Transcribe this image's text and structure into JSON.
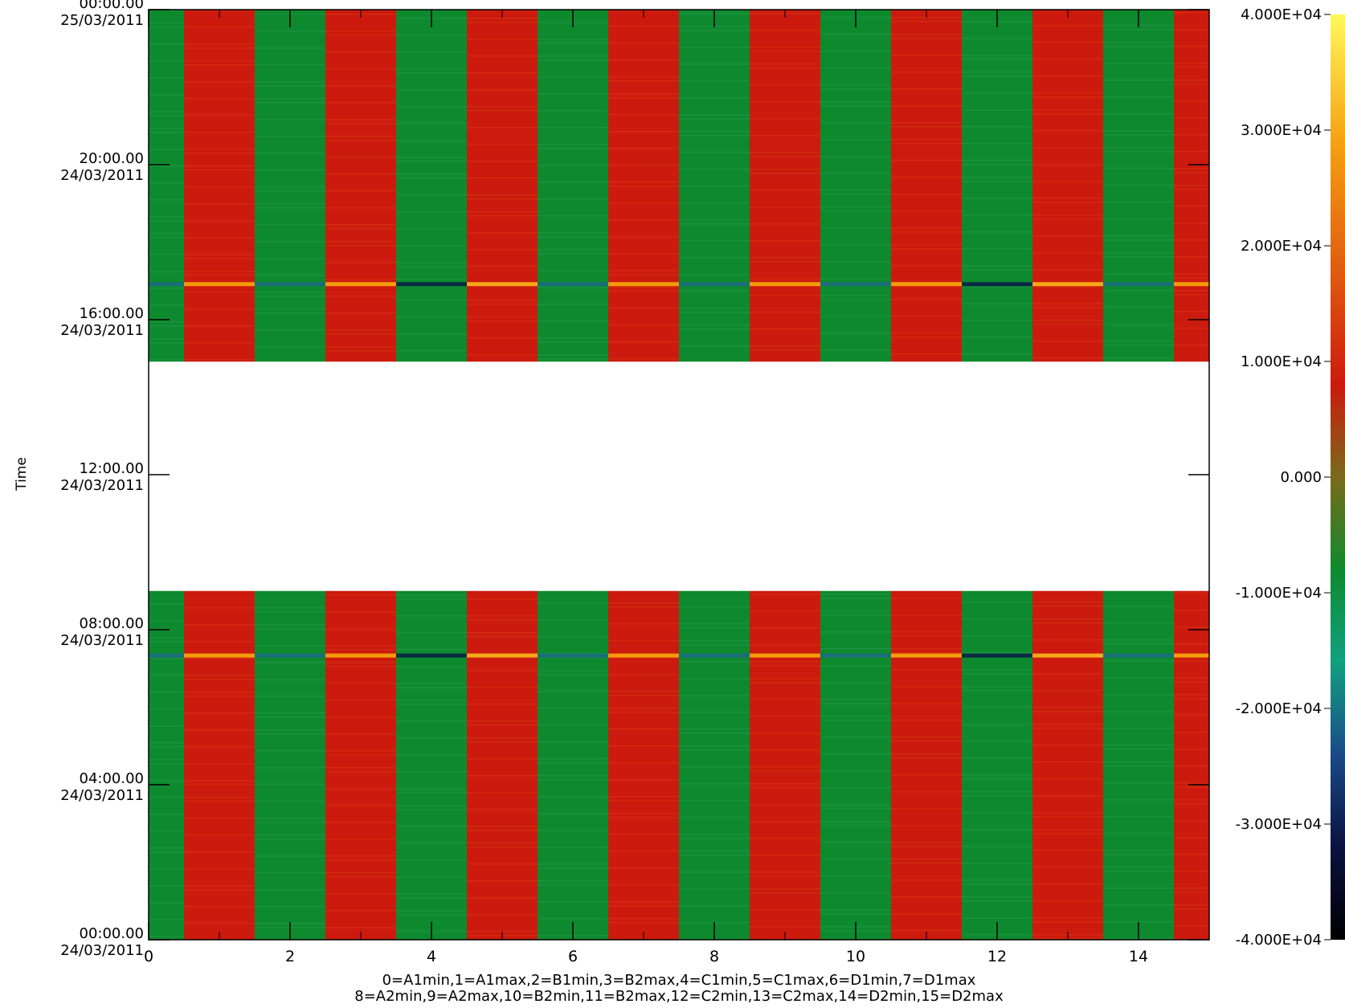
{
  "chart_data": {
    "type": "heatmap",
    "title": "",
    "xlabel": "0=A1min,1=A1max,2=B1min,3=B2max,4=C1min,5=C1max,6=D1min,7=D1max",
    "xlabel_line2": "8=A2min,9=A2max,10=B2min,11=B2max,12=C2min,13=C2max,14=D2min,15=D2max",
    "ylabel": "Time",
    "x_ticks": [
      "0",
      "2",
      "4",
      "6",
      "8",
      "10",
      "12",
      "14"
    ],
    "x_range": [
      0,
      15
    ],
    "y_ticks": [
      {
        "time": "00:00.00",
        "date": "25/03/2011"
      },
      {
        "time": "20:00.00",
        "date": "24/03/2011"
      },
      {
        "time": "16:00.00",
        "date": "24/03/2011"
      },
      {
        "time": "12:00.00",
        "date": "24/03/2011"
      },
      {
        "time": "08:00.00",
        "date": "24/03/2011"
      },
      {
        "time": "04:00.00",
        "date": "24/03/2011"
      },
      {
        "time": "00:00.00",
        "date": "24/03/2011"
      }
    ],
    "y_range": [
      "24/03/2011 00:00",
      "25/03/2011 00:00"
    ],
    "data_gap": [
      "24/03/2011 14:55",
      "24/03/2011 09:00"
    ],
    "color_range": [
      -40000,
      40000
    ],
    "colorbar_ticks": [
      "4.000E+04",
      "3.000E+04",
      "2.000E+04",
      "1.000E+04",
      "0.000",
      "-1.000E+04",
      "-2.000E+04",
      "-3.000E+04",
      "-4.000E+04"
    ],
    "channel_values": [
      -1,
      1,
      -1,
      1,
      -1,
      1,
      -1,
      1,
      -1,
      1,
      -1,
      1,
      -1,
      1,
      -1,
      1
    ],
    "spike_values": [
      -0.3,
      0.7,
      -0.4,
      0.7,
      -0.6,
      0.8,
      -0.4,
      0.7,
      -0.3,
      0.7,
      -0.3,
      0.7,
      -0.6,
      0.8,
      -0.5,
      0.7
    ],
    "spike_times": [
      "24/03/2011 16:55",
      "24/03/2011 07:20"
    ],
    "colors": {
      "green": "#0e8a2e",
      "red": "#cc1a0e",
      "orange": "#f39c0a",
      "teal": "#1a6e78",
      "dark": "#0a2a44"
    }
  }
}
